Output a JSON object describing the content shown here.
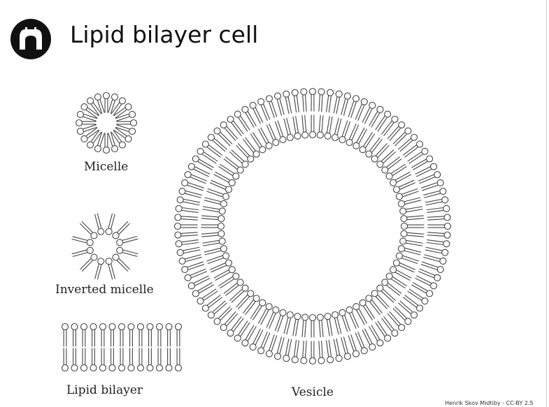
{
  "title": "Lipid bilayer cell",
  "logo": {
    "icon": "arch-gate-icon",
    "background": "#111111",
    "foreground": "#ffffff"
  },
  "labels": {
    "micelle": "Micelle",
    "inverted_micelle": "Inverted micelle",
    "lipid_bilayer": "Lipid bilayer",
    "vesicle": "Vesicle"
  },
  "credit": "Henrik Skov Midtiby - CC-BY 2.5",
  "structures": {
    "micelle_lipids": 20,
    "inverted_micelle_lipids": 12,
    "bilayer_lipids_per_leaflet": 13,
    "vesicle_outer_lipids": 96,
    "vesicle_inner_lipids": 76
  },
  "colors": {
    "stroke": "#444444",
    "head_fill": "#ffffff",
    "text": "#111111"
  }
}
